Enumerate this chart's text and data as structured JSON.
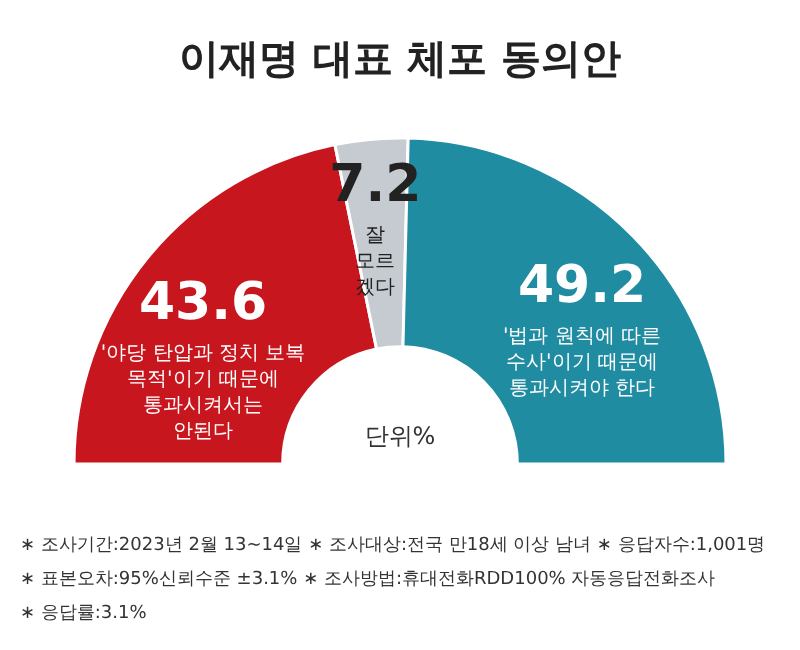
{
  "chart_data": {
    "type": "donut",
    "title": "이재명 대표 체포 동의안",
    "categories": [
      "'야당 탄압과 정치 보복\n목적'이기 때문에\n통과시켜서는\n안된다",
      "잘\n모르\n겠다",
      "'법과 원칙에 따른\n수사'이기 때문에\n통과시켜야 한다"
    ],
    "values": [
      43.6,
      7.2,
      49.2
    ],
    "colors": [
      "#c8161e",
      "#c5cbd0",
      "#1f8ca1"
    ],
    "data_labels": true,
    "annotations": [
      "단위%",
      "∗ 조사기간:2023년 2월 13~14일",
      "∗ 조사대상:전국 만18세 이상 남녀",
      "∗ 응답자수:1,001명",
      "∗ 표본오차:95%신뢰수준 ±3.1%",
      "∗ 조사방법:휴대전화RDD100% 자동응답전화조사",
      "∗ 응답률:3.1%"
    ]
  }
}
